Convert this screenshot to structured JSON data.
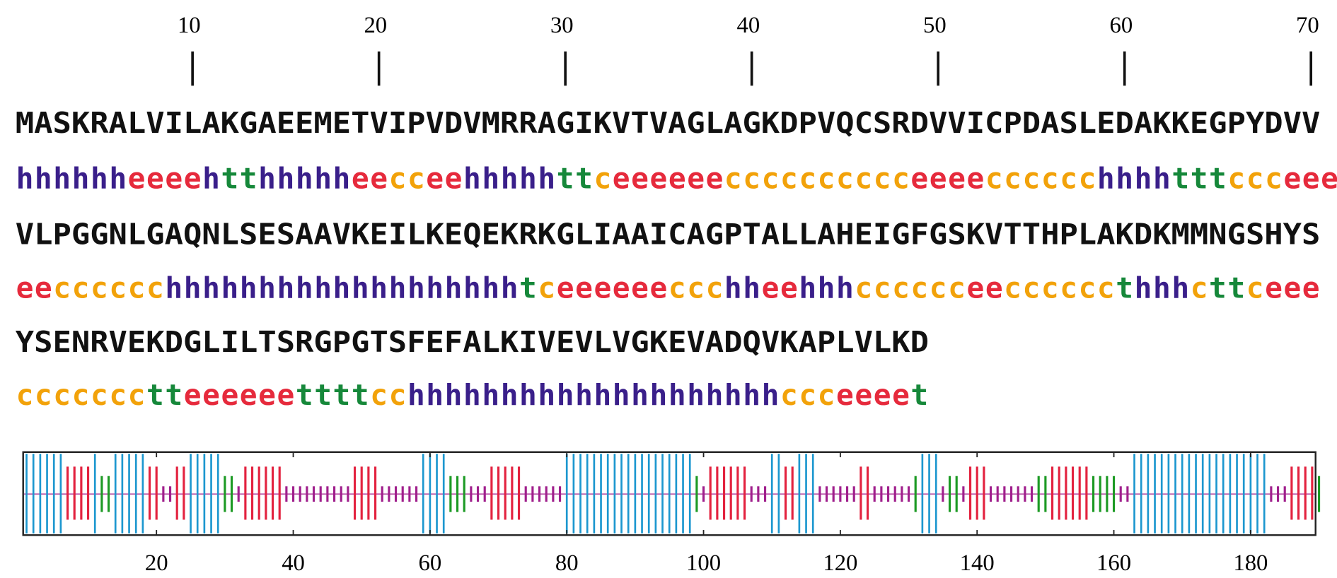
{
  "ruler": {
    "ticks": [
      10,
      20,
      30,
      40,
      50,
      60,
      70
    ]
  },
  "sequence_lines": [
    "MASKRALVILAKGAEEMETVIPVDVMRRAGIKVTVAGLAGKDPVQCSRDVVICPDASLEDAKKEGPYDVV",
    "VLPGGNLGAQNLSESAAVKEILKEQEKRKGLIAAICAGPTALLAHEIGFGSKVTTHPLAKDKMMNGSHYS",
    "YSENRVEKDGLILTSRGPGTSFEFALKIVEVLVGKEVADQVKAPLVLKD"
  ],
  "structure_lines": [
    "hhhhhheeeehtthhhhheecceehhhhhttceeeeeecccccccccceeeecccccchhhhtttccceee",
    "eecccccchhhhhhhhhhhhhhhhhhhtceeeeeeccchheehhhcccccceeccccccthhhcttceee",
    "ccccccctteeeeeettttcchhhhhhhhhhhhhhhhhhhhccceeeet"
  ],
  "text_colors": {
    "h": "#3a1f8a",
    "e": "#e62a3c",
    "t": "#16883a",
    "c": "#f2a20a"
  },
  "plot": {
    "xlim": [
      1,
      189
    ],
    "xticks": [
      20,
      40,
      60,
      80,
      100,
      120,
      140,
      160,
      180
    ],
    "colors": {
      "h": "#1c97cf",
      "e": "#e3223f",
      "t": "#1c9a24",
      "c": "#a01f8c"
    }
  }
}
